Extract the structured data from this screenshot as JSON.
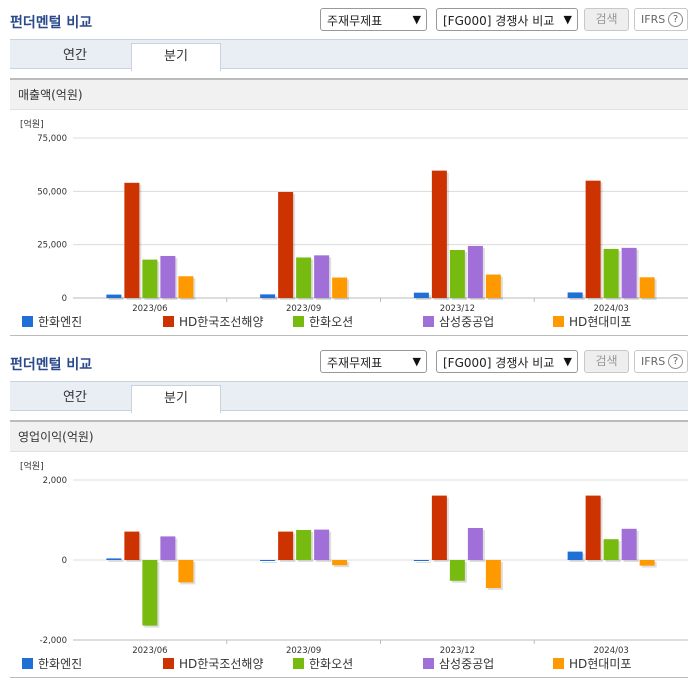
{
  "page_title": "펀더멘털 비교",
  "controls": {
    "statement_select": "주재무제표",
    "peer_select": "[FG000] 경쟁사 비교",
    "search_button": "검색",
    "ifrs_label": "IFRS",
    "help_glyph": "?"
  },
  "tabs": [
    "연간",
    "분기"
  ],
  "active_tab": "분기",
  "colors": {
    "hanwha_engine": "#1f6fd6",
    "hd_kse": "#cc3300",
    "hanwha_ocean": "#77bb11",
    "samsung_hi": "#a070d8",
    "hd_mipo": "#ff9900"
  },
  "chart_data": [
    {
      "type": "bar",
      "title": "매출액(억원)",
      "unit_label": "[억원]",
      "categories": [
        "2023/06",
        "2023/09",
        "2023/12",
        "2024/03"
      ],
      "ylim": [
        0,
        75000
      ],
      "ytick_labels": [
        "75,000",
        "50,000",
        "25,000",
        "0"
      ],
      "ytick_values": [
        75000,
        50000,
        25000,
        0
      ],
      "grid": true,
      "legend_position": "bottom",
      "series": [
        {
          "name": "한화엔진",
          "color": "#1f6fd6",
          "values": [
            1600,
            1700,
            2500,
            2600
          ]
        },
        {
          "name": "HD한국조선해양",
          "color": "#cc3300",
          "values": [
            54000,
            49700,
            59700,
            55000
          ]
        },
        {
          "name": "한화오션",
          "color": "#77bb11",
          "values": [
            18000,
            19000,
            22500,
            23000
          ]
        },
        {
          "name": "삼성중공업",
          "color": "#a070d8",
          "values": [
            19700,
            20000,
            24400,
            23500
          ]
        },
        {
          "name": "HD현대미포",
          "color": "#ff9900",
          "values": [
            10200,
            9600,
            11000,
            9700
          ]
        }
      ]
    },
    {
      "type": "bar",
      "title": "영업이익(억원)",
      "unit_label": "[억원]",
      "categories": [
        "2023/06",
        "2023/09",
        "2023/12",
        "2024/03"
      ],
      "ylim": [
        -2000,
        2000
      ],
      "ytick_labels": [
        "2,000",
        "0",
        "-2,000"
      ],
      "ytick_values": [
        2000,
        0,
        -2000
      ],
      "grid": true,
      "legend_position": "bottom",
      "series": [
        {
          "name": "한화엔진",
          "color": "#1f6fd6",
          "values": [
            40,
            0,
            0,
            210
          ]
        },
        {
          "name": "HD한국조선해양",
          "color": "#cc3300",
          "values": [
            710,
            710,
            1610,
            1610
          ]
        },
        {
          "name": "한화오션",
          "color": "#77bb11",
          "values": [
            -1640,
            750,
            -520,
            520
          ]
        },
        {
          "name": "삼성중공업",
          "color": "#a070d8",
          "values": [
            590,
            760,
            800,
            780
          ]
        },
        {
          "name": "HD현대미포",
          "color": "#ff9900",
          "values": [
            -560,
            -130,
            -700,
            -140
          ]
        }
      ]
    }
  ]
}
